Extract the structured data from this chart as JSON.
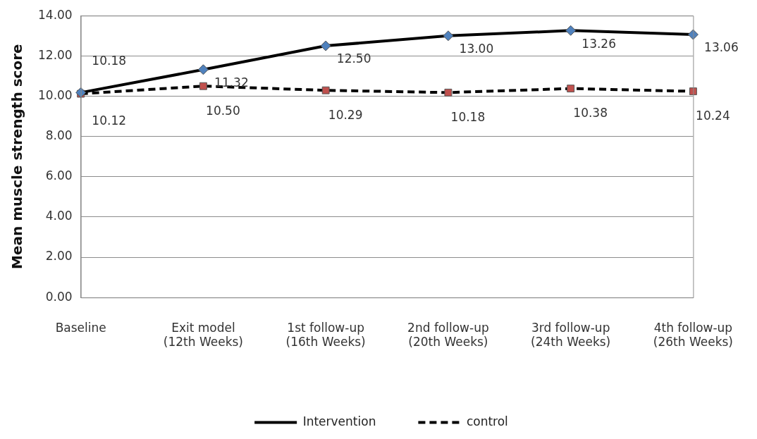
{
  "chart_data": {
    "type": "line",
    "ylabel": "Mean muscle strength score",
    "categories": [
      "Baseline",
      "Exit model\n(12th Weeks)",
      "1st follow-up\n(16th Weeks)",
      "2nd follow-up\n(20th Weeks)",
      "3rd follow-up\n(24th Weeks)",
      "4th follow-up\n(26th Weeks)"
    ],
    "series": [
      {
        "name": "Intervention",
        "color": "#000000",
        "marker": "diamond",
        "line_style": "solid",
        "values": [
          10.18,
          11.32,
          12.5,
          13.0,
          13.26,
          13.06
        ],
        "value_labels": [
          "10.18",
          "11.32",
          "12.50",
          "13.00",
          "13.26",
          "13.06"
        ]
      },
      {
        "name": "control",
        "color": "#000000",
        "marker": "square",
        "line_style": "dashed",
        "values": [
          10.12,
          10.5,
          10.29,
          10.18,
          10.38,
          10.24
        ],
        "value_labels": [
          "10.12",
          "10.50",
          "10.29",
          "10.18",
          "10.38",
          "10.24"
        ]
      }
    ],
    "ylim": [
      0,
      14
    ],
    "yticks": [
      {
        "value": 0,
        "label": "0.00"
      },
      {
        "value": 2,
        "label": "2.00"
      },
      {
        "value": 4,
        "label": "4.00"
      },
      {
        "value": 6,
        "label": "6.00"
      },
      {
        "value": 8,
        "label": "8.00"
      },
      {
        "value": 10,
        "label": "10.00"
      },
      {
        "value": 12,
        "label": "12.00"
      },
      {
        "value": 14,
        "label": "14.00"
      }
    ],
    "grid": "y",
    "legend": "bottom"
  }
}
